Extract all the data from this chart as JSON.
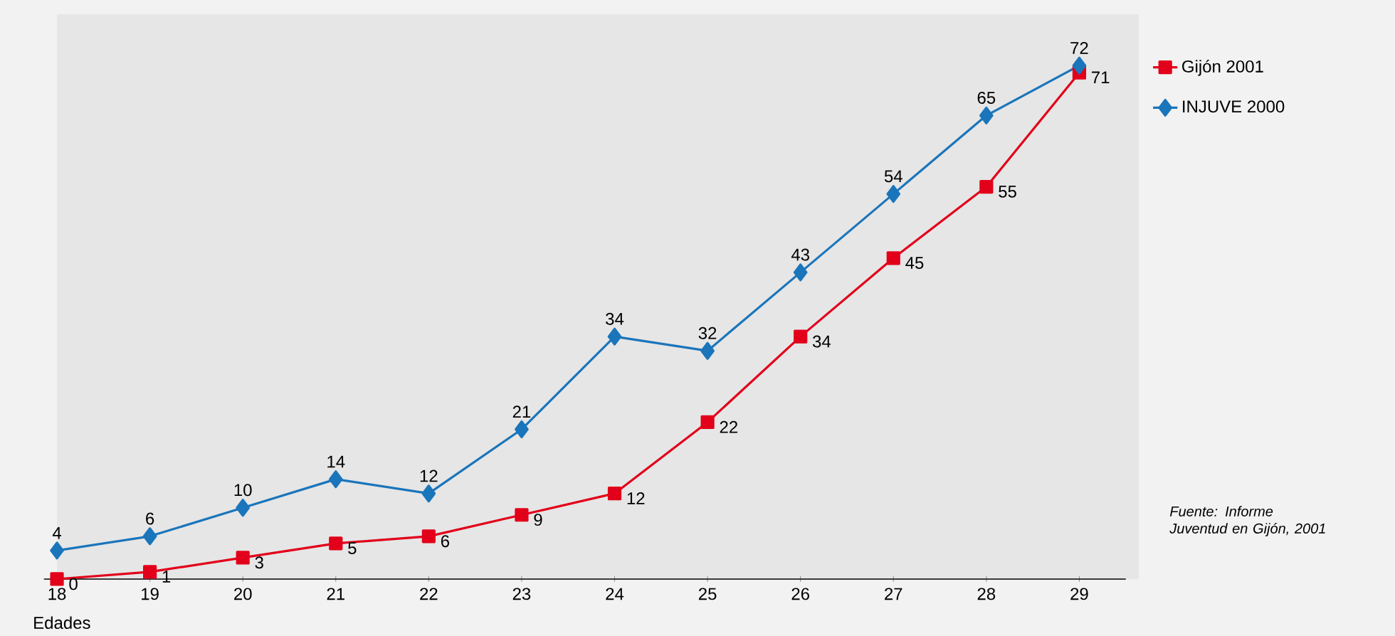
{
  "chart_data": {
    "type": "line",
    "xlabel": "Edades",
    "categories": [
      "18",
      "19",
      "20",
      "21",
      "22",
      "23",
      "24",
      "25",
      "26",
      "27",
      "28",
      "29"
    ],
    "series": [
      {
        "name": "Gijón 2001",
        "color": "#e2001a",
        "marker": "square",
        "values": [
          0,
          1,
          3,
          5,
          6,
          9,
          12,
          22,
          34,
          45,
          55,
          71
        ]
      },
      {
        "name": "INJUVE 2000",
        "color": "#1a75bb",
        "marker": "diamond",
        "values": [
          4,
          6,
          10,
          14,
          12,
          21,
          34,
          32,
          43,
          54,
          65,
          72
        ]
      }
    ],
    "data_labels": true,
    "legend": "top right",
    "annotations": [
      "Fuente: Informe Juventud en Gijón, 2001"
    ]
  }
}
